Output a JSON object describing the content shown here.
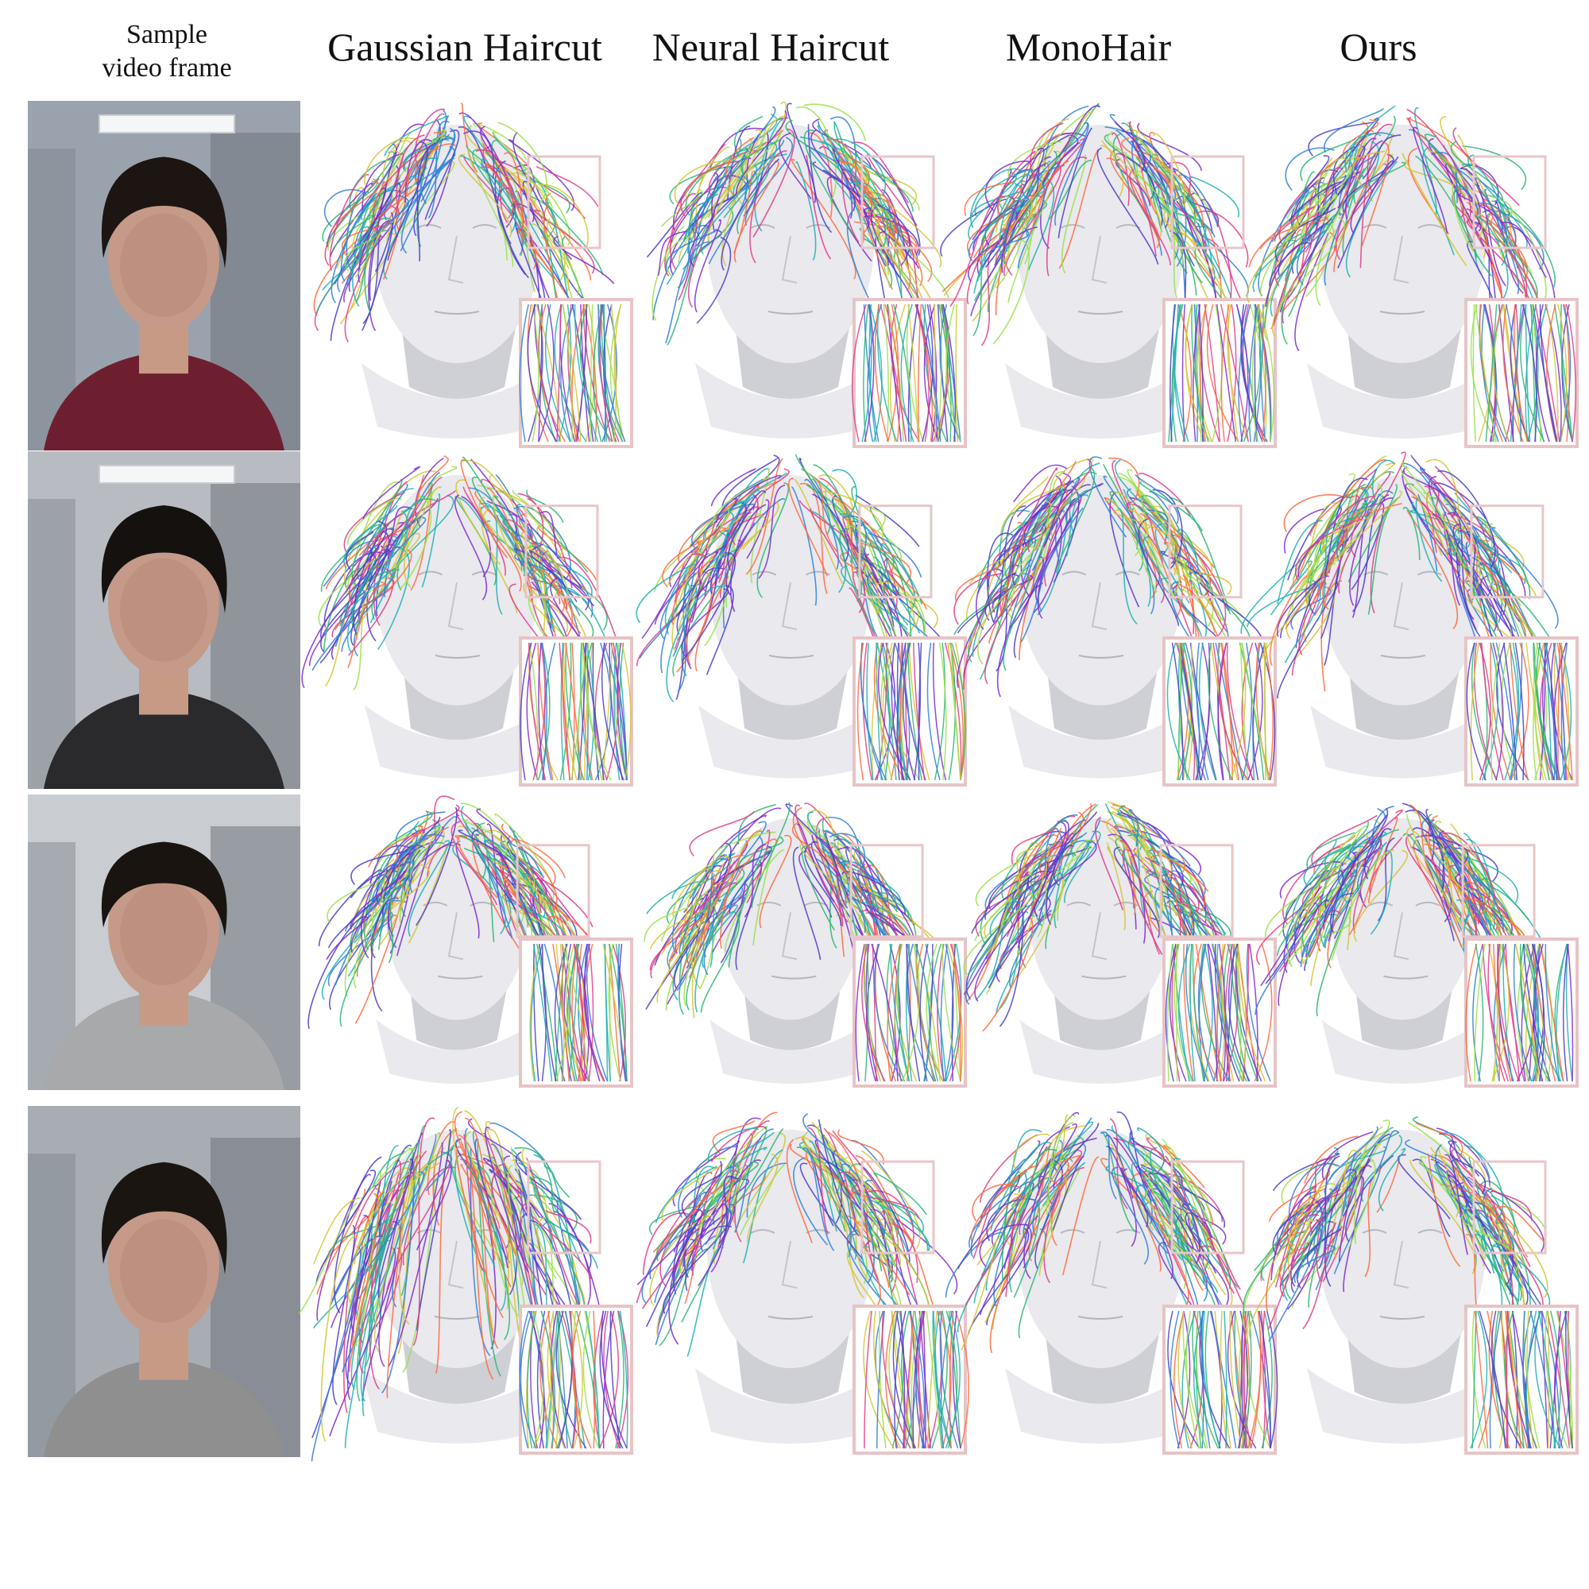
{
  "columns": {
    "sample": [
      "Sample",
      "video frame"
    ],
    "methods": [
      "Gaussian Haircut",
      "Neural Haircut",
      "MonoHair",
      "Ours"
    ]
  },
  "rows": [
    {
      "subject": "subject-1",
      "photo": {
        "hair": "#1c1512",
        "top": "#6e1f2f",
        "bg": "#9aa3ad",
        "lights": true
      }
    },
    {
      "subject": "subject-2",
      "photo": {
        "hair": "#15110f",
        "top": "#2a2a2c",
        "bg": "#b8bcc2",
        "lights": true
      }
    },
    {
      "subject": "subject-3",
      "photo": {
        "hair": "#1a1410",
        "top": "#a7a9ab",
        "bg": "#c9ccd0",
        "lights": false
      }
    },
    {
      "subject": "subject-4",
      "photo": {
        "hair": "#1a1511",
        "top": "#8f8f8f",
        "bg": "#a8adb3",
        "lights": false
      }
    }
  ],
  "strand_colors": [
    "#7b2ad1",
    "#2bb673",
    "#e23b8a",
    "#2f7fd8",
    "#d6c431",
    "#1fb0b3",
    "#ff6a3d",
    "#4a3cc9",
    "#9be14b"
  ],
  "colors": {
    "mannequin": "#e9e9ee",
    "mannequin_shade": "#cfcfd6",
    "zoom_box": "#e8c6c8"
  }
}
